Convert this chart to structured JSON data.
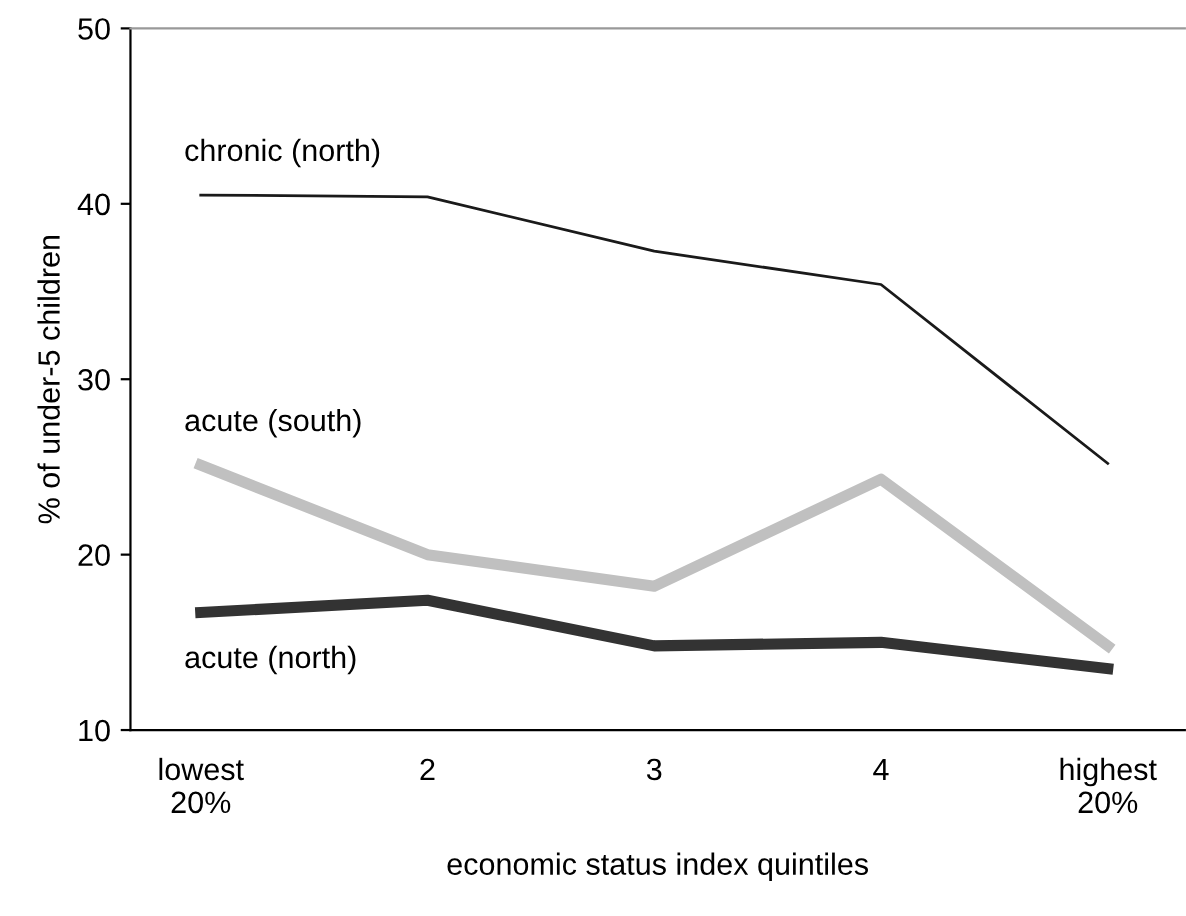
{
  "chart_data": {
    "type": "line",
    "xlabel": "economic status index quintiles",
    "ylabel": "% of under-5 children",
    "categories": [
      "lowest\n20%",
      "2",
      "3",
      "4",
      "highest\n20%"
    ],
    "series": [
      {
        "name": "chronic (north)",
        "color": "#1a1a1a",
        "values": [
          40.5,
          40.4,
          37.3,
          35.4,
          25.2
        ]
      },
      {
        "name": "acute (south)",
        "color": "#c0c0c0",
        "values": [
          25.1,
          20.0,
          18.2,
          24.3,
          14.8
        ]
      },
      {
        "name": "acute (north)",
        "color": "#333333",
        "values": [
          16.7,
          17.4,
          14.8,
          15.0,
          13.5
        ]
      }
    ],
    "ylim": [
      10,
      50
    ],
    "yticks": [
      10,
      20,
      30,
      40,
      50
    ],
    "grid": false,
    "legend": false,
    "marker": "none",
    "line_style": "solid"
  }
}
